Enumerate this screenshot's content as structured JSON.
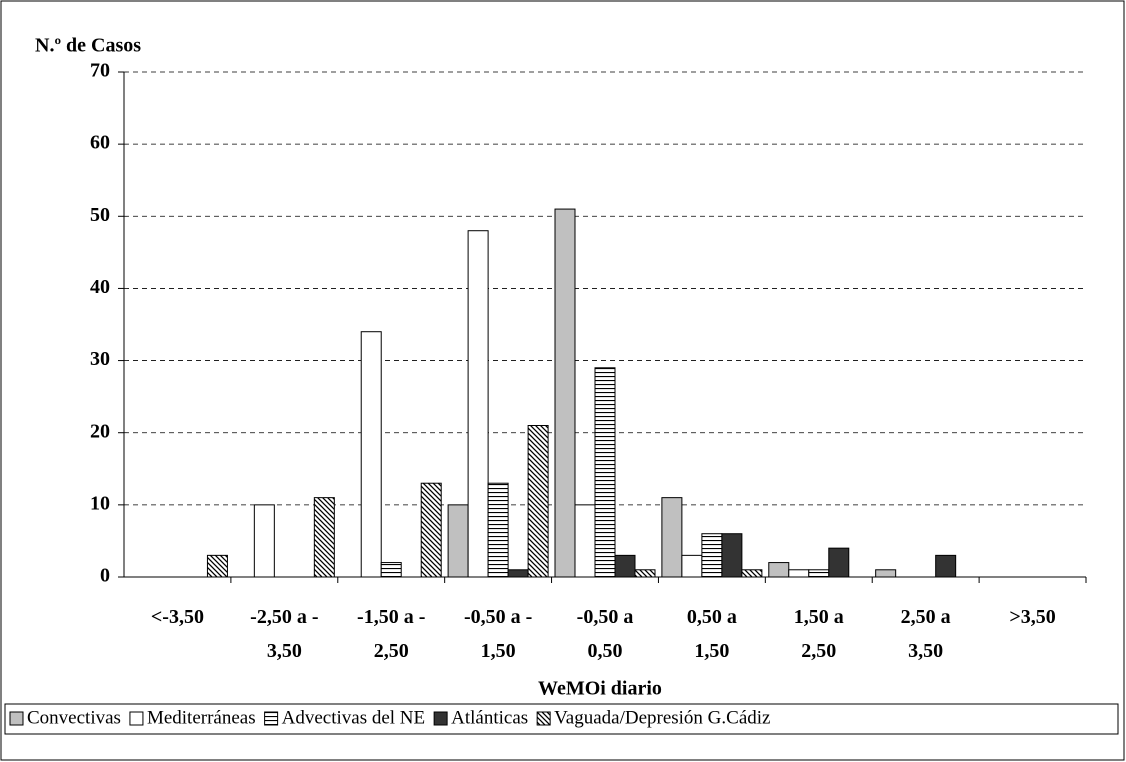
{
  "chart_data": {
    "type": "bar",
    "y_label": "N.º de Casos",
    "x_label": "WeMOi diario",
    "categories": [
      "<-3,50",
      "-2,50 a -\n3,50",
      "-1,50 a -\n2,50",
      "-0,50 a -\n1,50",
      "-0,50 a\n0,50",
      "0,50 a\n1,50",
      "1,50 a\n2,50",
      "2,50 a\n3,50",
      ">3,50"
    ],
    "series": [
      {
        "name": "Convectivas",
        "color": "#c0c0c0",
        "pattern": "solid",
        "values": [
          0,
          0,
          0,
          10,
          51,
          11,
          2,
          1,
          0
        ]
      },
      {
        "name": "Mediterráneas",
        "color": "#ffffff",
        "pattern": "solid",
        "values": [
          0,
          10,
          34,
          48,
          10,
          3,
          1,
          0,
          0
        ]
      },
      {
        "name": "Advectivas del NE",
        "color": "#ffffff",
        "pattern": "horizontal",
        "values": [
          0,
          0,
          2,
          13,
          29,
          6,
          1,
          0,
          0
        ]
      },
      {
        "name": "Atlánticas",
        "color": "#333333",
        "pattern": "solid",
        "values": [
          0,
          0,
          0,
          1,
          3,
          6,
          4,
          3,
          0
        ]
      },
      {
        "name": "Vaguada/Depresión G.Cádiz",
        "color": "#ffffff",
        "pattern": "diagonal",
        "values": [
          3,
          11,
          13,
          21,
          1,
          1,
          0,
          0,
          0
        ]
      }
    ],
    "ylim": [
      0,
      70
    ],
    "yticks": [
      0,
      10,
      20,
      30,
      40,
      50,
      60,
      70
    ],
    "grid": true,
    "legend": "bottom"
  }
}
